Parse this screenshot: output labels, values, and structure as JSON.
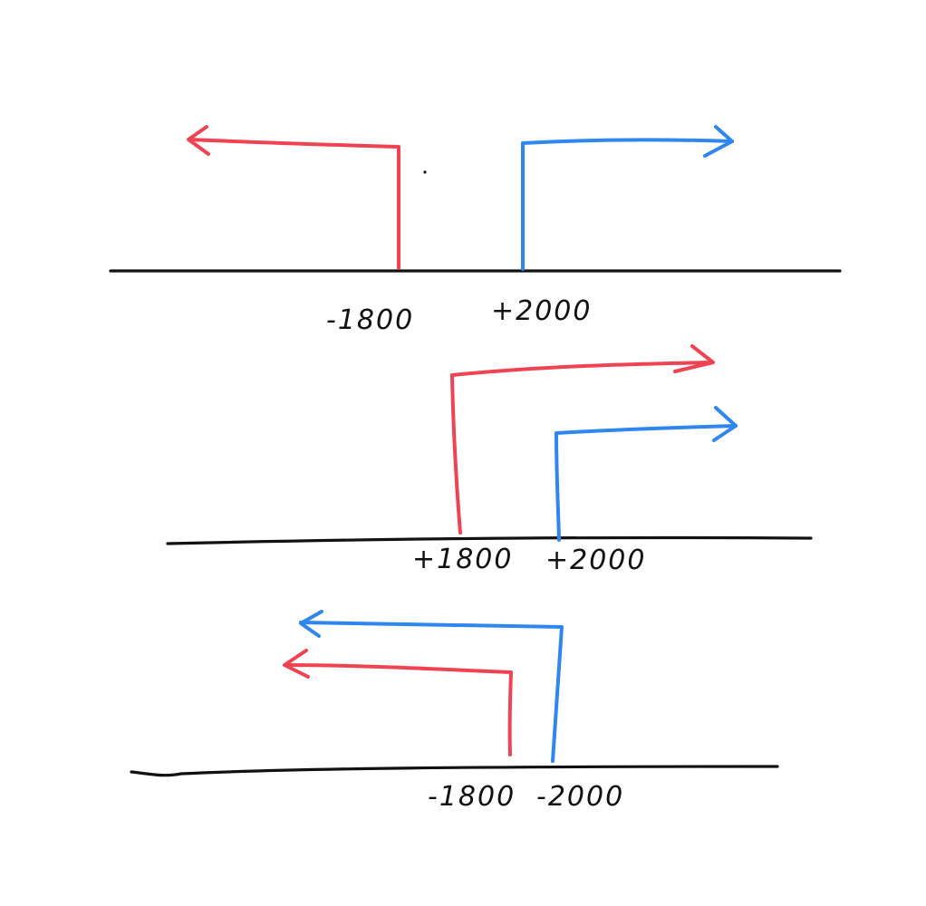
{
  "colors": {
    "background": "#ffffff",
    "axis": "#111111",
    "red": "#ef4351",
    "blue": "#2f86ef",
    "label": "#111111"
  },
  "panels": [
    {
      "labels": {
        "left": "-1800",
        "right": "+2000"
      }
    },
    {
      "labels": {
        "left": "+1800",
        "right": "+2000"
      }
    },
    {
      "labels": {
        "left": "-1800",
        "right": "-2000"
      }
    }
  ]
}
